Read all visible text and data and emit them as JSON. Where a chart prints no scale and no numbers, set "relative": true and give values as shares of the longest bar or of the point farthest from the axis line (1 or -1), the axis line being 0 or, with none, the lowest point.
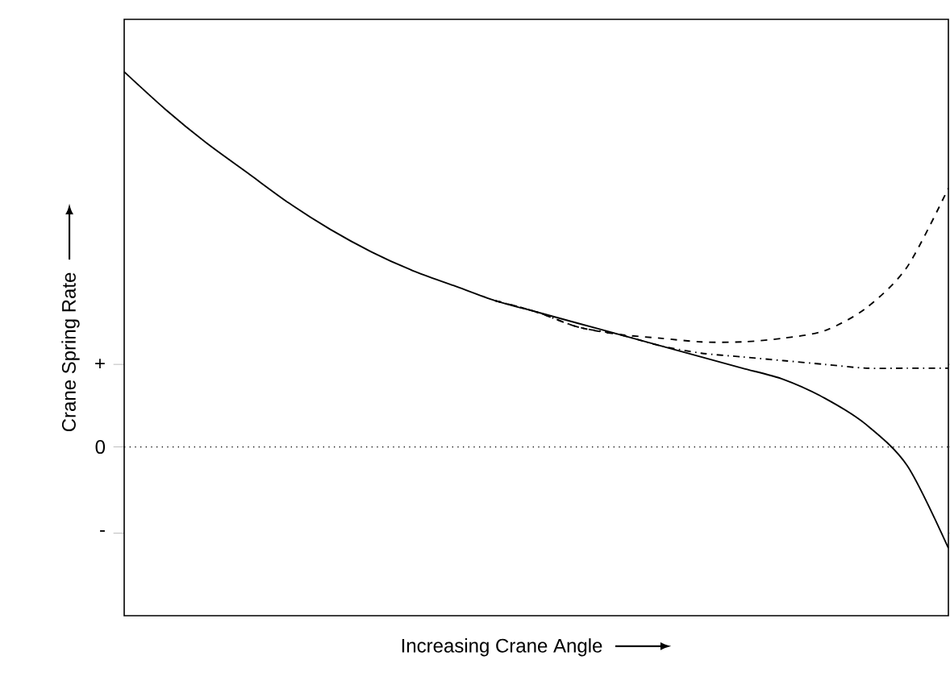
{
  "chart_data": {
    "type": "line",
    "relative": true,
    "xlabel": "Increasing Crane Angle",
    "ylabel": "Crane Spring Rate",
    "categories": [
      null,
      null,
      null,
      null,
      null,
      null,
      null,
      null,
      null,
      null,
      null,
      null,
      null,
      null,
      null,
      null,
      null,
      null,
      null,
      null,
      null
    ],
    "series": [
      {
        "color": "#000000",
        "line_style": "solid",
        "values": [
          1.0,
          0.9,
          0.81,
          0.73,
          0.65,
          0.58,
          0.52,
          0.47,
          0.43,
          0.39,
          0.36,
          0.33,
          0.3,
          0.27,
          0.24,
          0.21,
          0.18,
          0.13,
          0.06,
          -0.05,
          -0.27
        ]
      },
      {
        "color": "#000000",
        "line_style": "dashed",
        "values": [
          null,
          null,
          null,
          null,
          null,
          null,
          null,
          null,
          null,
          0.39,
          0.36,
          0.32,
          0.3,
          0.29,
          0.28,
          0.28,
          0.29,
          0.31,
          0.37,
          0.48,
          0.69
        ]
      },
      {
        "color": "#000000",
        "line_style": "dashdot",
        "values": [
          null,
          null,
          null,
          null,
          null,
          null,
          null,
          null,
          null,
          0.39,
          0.36,
          0.32,
          0.3,
          0.27,
          0.25,
          0.24,
          0.23,
          0.22,
          0.21,
          0.21,
          0.21
        ]
      }
    ],
    "ref_lines": [
      {
        "axis": "y",
        "value": 0,
        "label": "0",
        "line_style": "dotted",
        "color": "#000000"
      }
    ],
    "annotations": [
      "+",
      "-"
    ],
    "marker": "none"
  }
}
